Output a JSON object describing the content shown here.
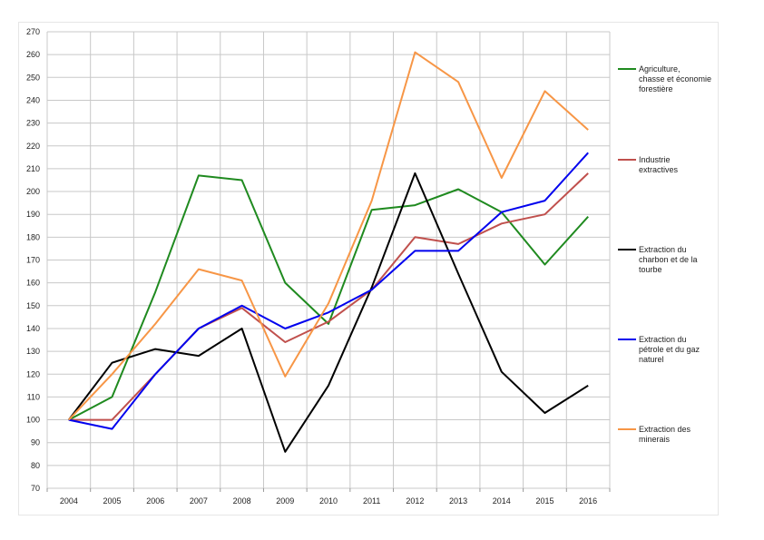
{
  "chart_data": {
    "type": "line",
    "x": [
      2004,
      2005,
      2006,
      2007,
      2008,
      2009,
      2010,
      2011,
      2012,
      2013,
      2014,
      2015,
      2016
    ],
    "x_tick_labels": [
      "2004",
      "2005",
      "2006",
      "2007",
      "2008",
      "2009",
      "2010",
      "2011",
      "2012",
      "2013",
      "2014",
      "2015",
      "2016"
    ],
    "ylim": [
      70,
      270
    ],
    "y_ticks": [
      70,
      80,
      90,
      100,
      110,
      120,
      130,
      140,
      150,
      160,
      170,
      180,
      190,
      200,
      210,
      220,
      230,
      240,
      250,
      260,
      270
    ],
    "grid": true,
    "legend_position": "right",
    "series": [
      {
        "name": "Agriculture, chasse et économie forestière",
        "legend_lines": [
          "Agriculture,",
          "chasse et économie",
          "forestière"
        ],
        "color": "#1f8a1f",
        "values": [
          100,
          110,
          156,
          207,
          205,
          160,
          142,
          192,
          194,
          201,
          191,
          168,
          189
        ]
      },
      {
        "name": "Industrie extractives",
        "legend_lines": [
          "Industrie",
          "extractives"
        ],
        "color": "#c0504d",
        "values": [
          100,
          100,
          120,
          140,
          149,
          134,
          143,
          157,
          180,
          177,
          186,
          190,
          208
        ]
      },
      {
        "name": "Extraction du charbon et de la tourbe",
        "legend_lines": [
          "Extraction du",
          "charbon et de la",
          "tourbe"
        ],
        "color": "#000000",
        "values": [
          100,
          125,
          131,
          128,
          140,
          86,
          115,
          158,
          208,
          164,
          121,
          103,
          115
        ]
      },
      {
        "name": "Extraction du pétrole et du gaz naturel",
        "legend_lines": [
          "Extraction du",
          "pétrole et du gaz",
          "naturel"
        ],
        "color": "#0000ee",
        "values": [
          100,
          96,
          120,
          140,
          150,
          140,
          147,
          157,
          174,
          174,
          191,
          196,
          217
        ]
      },
      {
        "name": "Extraction des minerais",
        "legend_lines": [
          "Extraction des",
          "minerais"
        ],
        "color": "#f79646",
        "values": [
          100,
          120,
          142,
          166,
          161,
          119,
          151,
          196,
          261,
          248,
          206,
          244,
          227
        ]
      }
    ]
  }
}
